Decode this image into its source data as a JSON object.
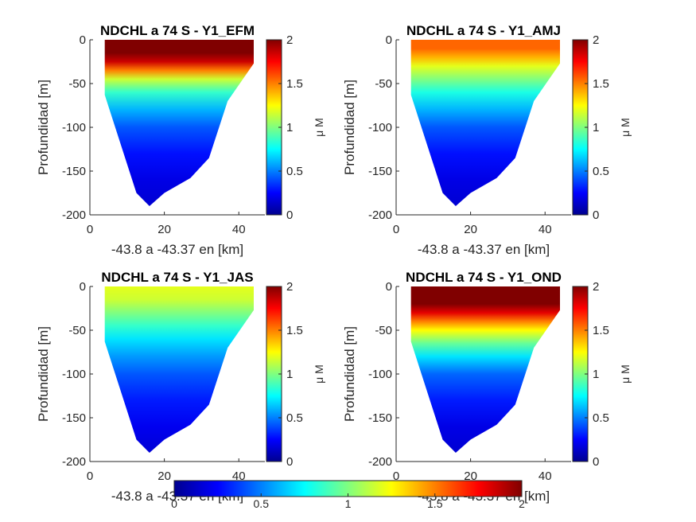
{
  "chart_data": [
    {
      "type": "heatmap",
      "title": "NDCHL a 74 S - Y1_EFM",
      "xlabel": "-43.8 a -43.37 en [km]",
      "ylabel": "Profundidad [m]",
      "colorbar_label": "μ M",
      "xlim": [
        0,
        47
      ],
      "ylim": [
        -200,
        0
      ],
      "xticks": [
        "0",
        "20",
        "40"
      ],
      "yticks": [
        "0",
        "-50",
        "-100",
        "-150",
        "-200"
      ],
      "cticks": [
        "0",
        "0.5",
        "1",
        "1.5",
        "2"
      ],
      "clim": [
        0,
        2
      ],
      "bottom_profile": {
        "x": [
          4,
          4,
          12.5,
          16,
          20,
          27,
          32,
          37,
          44,
          44
        ],
        "depth": [
          0,
          -63,
          -175,
          -190,
          -175,
          -158,
          -135,
          -70,
          -27,
          0
        ]
      },
      "depth_profile": {
        "depth": [
          0,
          -15,
          -25,
          -35,
          -45,
          -60,
          -80,
          -100,
          -130,
          -160,
          -200
        ],
        "value": [
          2.0,
          2.0,
          1.85,
          1.5,
          1.15,
          0.85,
          0.6,
          0.42,
          0.28,
          0.2,
          0.15
        ]
      }
    },
    {
      "type": "heatmap",
      "title": "NDCHL a 74 S - Y1_AMJ",
      "xlabel": "-43.8 a -43.37 en [km]",
      "ylabel": "Profundidad [m]",
      "colorbar_label": "μ M",
      "xlim": [
        0,
        47
      ],
      "ylim": [
        -200,
        0
      ],
      "xticks": [
        "0",
        "20",
        "40"
      ],
      "yticks": [
        "0",
        "-50",
        "-100",
        "-150",
        "-200"
      ],
      "cticks": [
        "0",
        "0.5",
        "1",
        "1.5",
        "2"
      ],
      "clim": [
        0,
        2
      ],
      "bottom_profile": {
        "x": [
          4,
          4,
          12.5,
          16,
          20,
          27,
          32,
          37,
          44,
          44
        ],
        "depth": [
          0,
          -63,
          -175,
          -190,
          -175,
          -158,
          -135,
          -70,
          -27,
          0
        ]
      },
      "depth_profile": {
        "depth": [
          0,
          -10,
          -20,
          -30,
          -45,
          -60,
          -80,
          -100,
          -130,
          -160,
          -200
        ],
        "value": [
          1.55,
          1.55,
          1.4,
          1.2,
          1.0,
          0.8,
          0.6,
          0.42,
          0.28,
          0.2,
          0.15
        ]
      }
    },
    {
      "type": "heatmap",
      "title": "NDCHL a 74 S - Y1_JAS",
      "xlabel": "-43.8 a -43.37 en [km]",
      "ylabel": "Profundidad [m]",
      "colorbar_label": "μ M",
      "xlim": [
        0,
        47
      ],
      "ylim": [
        -200,
        0
      ],
      "xticks": [
        "0",
        "20",
        "40"
      ],
      "yticks": [
        "0",
        "-50",
        "-100",
        "-150",
        "-200"
      ],
      "cticks": [
        "0",
        "0.5",
        "1",
        "1.5",
        "2"
      ],
      "clim": [
        0,
        2
      ],
      "bottom_profile": {
        "x": [
          4,
          4,
          12.5,
          16,
          20,
          27,
          32,
          37,
          44,
          44
        ],
        "depth": [
          0,
          -63,
          -175,
          -190,
          -175,
          -158,
          -135,
          -70,
          -27,
          0
        ]
      },
      "depth_profile": {
        "depth": [
          0,
          -15,
          -30,
          -45,
          -60,
          -80,
          -100,
          -130,
          -160,
          -200
        ],
        "value": [
          1.2,
          1.15,
          1.0,
          0.85,
          0.7,
          0.55,
          0.42,
          0.3,
          0.22,
          0.15
        ]
      }
    },
    {
      "type": "heatmap",
      "title": "NDCHL a 74 S - Y1_OND",
      "xlabel": "-43.8 a -43.37 en [km]",
      "ylabel": "Profundidad [m]",
      "colorbar_label": "μ M",
      "xlim": [
        0,
        47
      ],
      "ylim": [
        -200,
        0
      ],
      "xticks": [
        "0",
        "20",
        "40"
      ],
      "yticks": [
        "0",
        "-50",
        "-100",
        "-150",
        "-200"
      ],
      "cticks": [
        "0",
        "0.5",
        "1",
        "1.5",
        "2"
      ],
      "clim": [
        0,
        2
      ],
      "bottom_profile": {
        "x": [
          4,
          4,
          12.5,
          16,
          20,
          27,
          32,
          37,
          44,
          44
        ],
        "depth": [
          0,
          -63,
          -175,
          -190,
          -175,
          -158,
          -135,
          -70,
          -27,
          0
        ]
      },
      "depth_profile": {
        "depth": [
          0,
          -20,
          -30,
          -40,
          -50,
          -65,
          -80,
          -100,
          -130,
          -160,
          -200
        ],
        "value": [
          2.0,
          2.0,
          1.8,
          1.5,
          1.25,
          0.95,
          0.7,
          0.45,
          0.3,
          0.2,
          0.15
        ]
      }
    }
  ],
  "shared_colorbar": {
    "ticks": [
      "0",
      "0.5",
      "1",
      "1.5",
      "2"
    ],
    "clim": [
      0,
      2
    ]
  },
  "colormap": "jet"
}
